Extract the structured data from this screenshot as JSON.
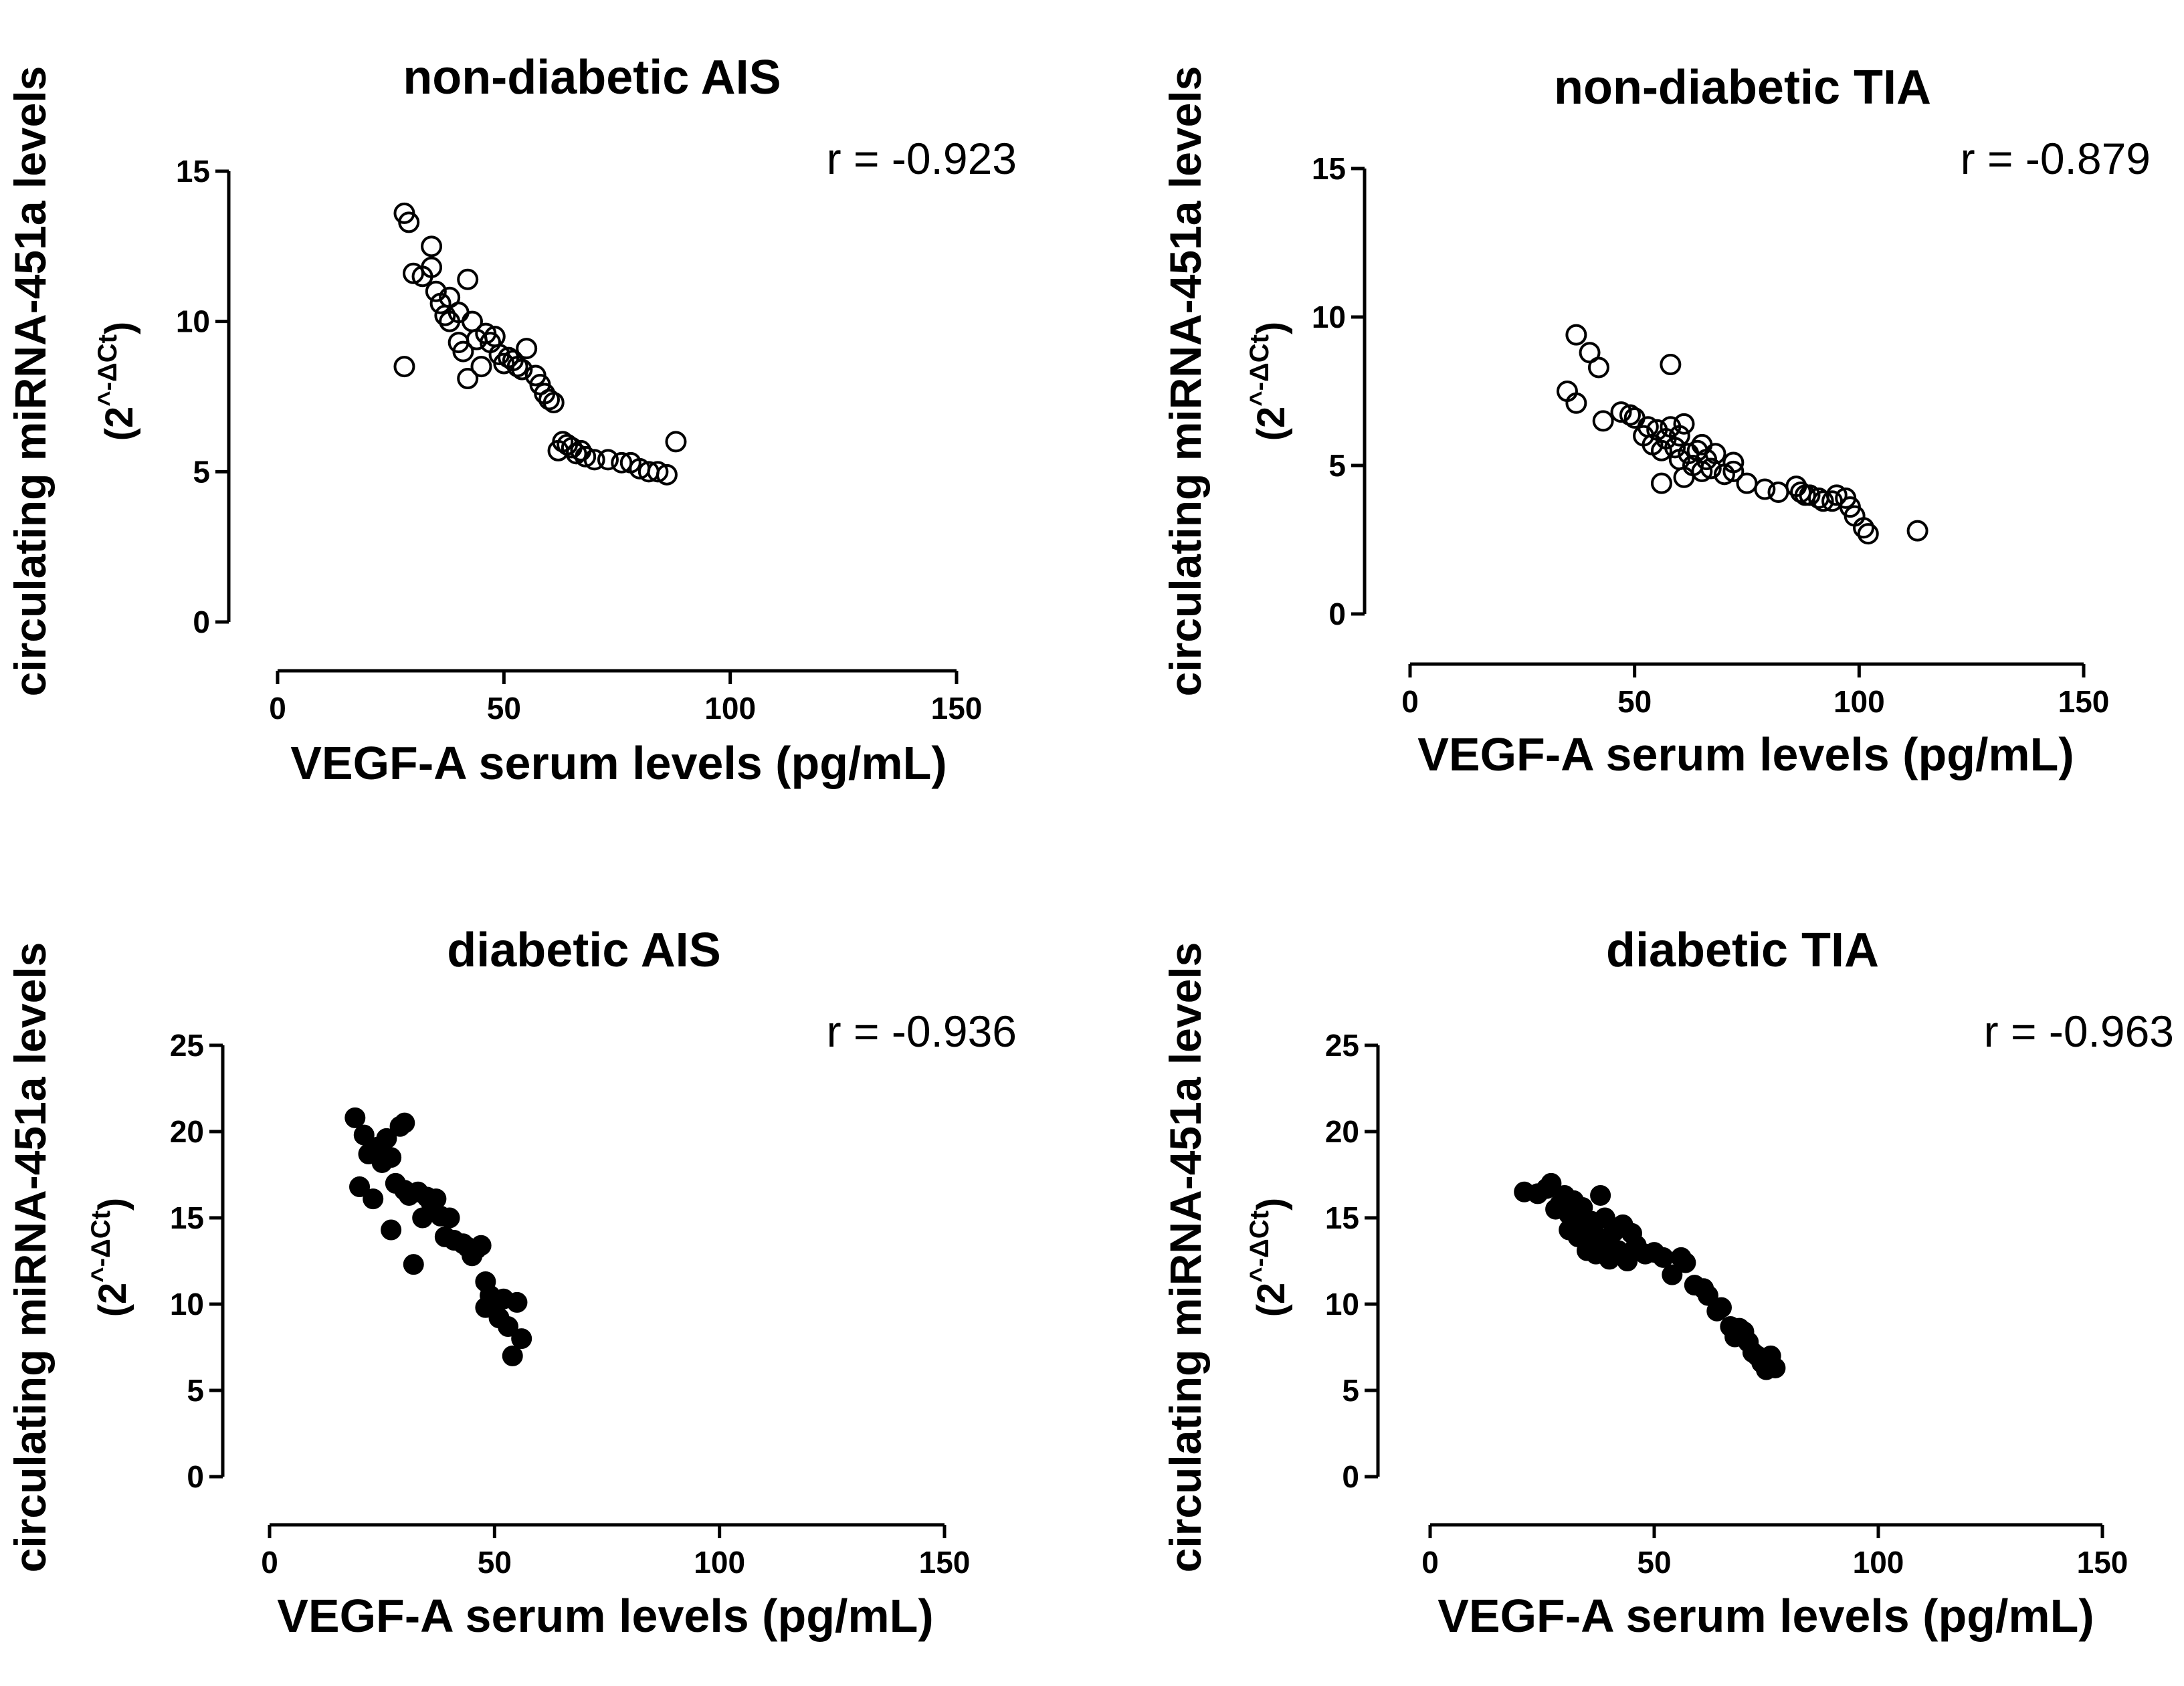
{
  "chart_data": [
    {
      "type": "scatter",
      "title": "non-diabetic AIS",
      "xlabel": "VEGF-A serum levels (pg/mL)",
      "ylabel": "circulating miRNA-451a levels",
      "ylabel_unit": {
        "open": "(2",
        "sup": "^-ΔCt",
        "close": ")"
      },
      "annotation": "r = -0.923",
      "xlim": [
        0,
        150
      ],
      "ylim": [
        0,
        15
      ],
      "xticks": [
        0,
        50,
        100,
        150
      ],
      "yticks": [
        0,
        5,
        10,
        15
      ],
      "marker": "open",
      "points": [
        [
          28,
          13.6
        ],
        [
          29,
          13.3
        ],
        [
          30,
          11.6
        ],
        [
          32,
          11.5
        ],
        [
          34,
          12.5
        ],
        [
          34,
          11.8
        ],
        [
          35,
          11.0
        ],
        [
          36,
          10.6
        ],
        [
          37,
          10.2
        ],
        [
          38,
          10.8
        ],
        [
          38,
          10.0
        ],
        [
          40,
          10.3
        ],
        [
          40,
          9.3
        ],
        [
          41,
          9.0
        ],
        [
          42,
          8.1
        ],
        [
          42,
          11.4
        ],
        [
          43,
          10.0
        ],
        [
          44,
          9.4
        ],
        [
          45,
          8.5
        ],
        [
          46,
          9.6
        ],
        [
          47,
          9.3
        ],
        [
          48,
          9.5
        ],
        [
          49,
          8.9
        ],
        [
          50,
          8.6
        ],
        [
          51,
          8.8
        ],
        [
          52,
          8.7
        ],
        [
          53,
          8.5
        ],
        [
          54,
          8.4
        ],
        [
          55,
          9.1
        ],
        [
          57,
          8.2
        ],
        [
          58,
          7.9
        ],
        [
          59,
          7.6
        ],
        [
          60,
          7.4
        ],
        [
          61,
          7.3
        ],
        [
          62,
          5.7
        ],
        [
          63,
          6.0
        ],
        [
          64,
          5.9
        ],
        [
          65,
          5.8
        ],
        [
          66,
          5.6
        ],
        [
          67,
          5.7
        ],
        [
          68,
          5.5
        ],
        [
          70,
          5.4
        ],
        [
          73,
          5.4
        ],
        [
          76,
          5.3
        ],
        [
          78,
          5.3
        ],
        [
          80,
          5.1
        ],
        [
          82,
          5.0
        ],
        [
          84,
          5.0
        ],
        [
          86,
          4.9
        ],
        [
          88,
          6.0
        ],
        [
          28,
          8.5
        ]
      ]
    },
    {
      "type": "scatter",
      "title": "non-diabetic TIA",
      "xlabel": "VEGF-A serum levels (pg/mL)",
      "ylabel": "circulating miRNA-451a levels",
      "ylabel_unit": {
        "open": "(2",
        "sup": "^-ΔCt",
        "close": ")"
      },
      "annotation": "r = -0.879",
      "xlim": [
        0,
        150
      ],
      "ylim": [
        0,
        15
      ],
      "xticks": [
        0,
        50,
        100,
        150
      ],
      "yticks": [
        0,
        5,
        10,
        15
      ],
      "marker": "open",
      "points": [
        [
          35,
          7.5
        ],
        [
          37,
          7.1
        ],
        [
          37,
          9.4
        ],
        [
          40,
          8.8
        ],
        [
          42,
          8.3
        ],
        [
          43,
          6.5
        ],
        [
          47,
          6.8
        ],
        [
          49,
          6.7
        ],
        [
          50,
          6.6
        ],
        [
          52,
          6.0
        ],
        [
          53,
          6.3
        ],
        [
          54,
          5.7
        ],
        [
          55,
          6.2
        ],
        [
          56,
          5.5
        ],
        [
          56,
          4.4
        ],
        [
          57,
          5.9
        ],
        [
          58,
          6.3
        ],
        [
          58,
          8.4
        ],
        [
          59,
          5.6
        ],
        [
          60,
          6.0
        ],
        [
          60,
          5.2
        ],
        [
          61,
          6.4
        ],
        [
          61,
          4.6
        ],
        [
          62,
          5.4
        ],
        [
          63,
          5.0
        ],
        [
          64,
          5.5
        ],
        [
          65,
          5.7
        ],
        [
          65,
          4.8
        ],
        [
          66,
          5.2
        ],
        [
          67,
          4.9
        ],
        [
          68,
          5.4
        ],
        [
          70,
          4.7
        ],
        [
          72,
          4.8
        ],
        [
          72,
          5.1
        ],
        [
          75,
          4.4
        ],
        [
          79,
          4.2
        ],
        [
          82,
          4.1
        ],
        [
          86,
          4.3
        ],
        [
          87,
          4.1
        ],
        [
          88,
          4.0
        ],
        [
          89,
          4.0
        ],
        [
          91,
          3.9
        ],
        [
          92,
          3.8
        ],
        [
          94,
          3.8
        ],
        [
          95,
          4.0
        ],
        [
          97,
          3.9
        ],
        [
          98,
          3.6
        ],
        [
          99,
          3.3
        ],
        [
          101,
          2.9
        ],
        [
          102,
          2.7
        ],
        [
          113,
          2.8
        ]
      ]
    },
    {
      "type": "scatter",
      "title": "diabetic AIS",
      "xlabel": "VEGF-A serum levels (pg/mL)",
      "ylabel": "circulating miRNA-451a levels",
      "ylabel_unit": {
        "open": "(2",
        "sup": "^-ΔCt",
        "close": ")"
      },
      "annotation": "r = -0.936",
      "xlim": [
        0,
        150
      ],
      "ylim": [
        0,
        25
      ],
      "xticks": [
        0,
        50,
        100,
        150
      ],
      "yticks": [
        0,
        5,
        10,
        15,
        20,
        25
      ],
      "marker": "filled",
      "points": [
        [
          19,
          20.8
        ],
        [
          20,
          16.8
        ],
        [
          21,
          19.8
        ],
        [
          22,
          18.7
        ],
        [
          23,
          16.1
        ],
        [
          24,
          19.1
        ],
        [
          25,
          18.2
        ],
        [
          26,
          19.6
        ],
        [
          27,
          14.3
        ],
        [
          27,
          18.5
        ],
        [
          28,
          17.0
        ],
        [
          29,
          20.3
        ],
        [
          30,
          20.5
        ],
        [
          30,
          16.6
        ],
        [
          31,
          16.3
        ],
        [
          32,
          12.3
        ],
        [
          33,
          16.5
        ],
        [
          34,
          15.0
        ],
        [
          35,
          16.2
        ],
        [
          36,
          15.8
        ],
        [
          37,
          16.1
        ],
        [
          38,
          15.1
        ],
        [
          39,
          13.9
        ],
        [
          40,
          15.0
        ],
        [
          41,
          13.7
        ],
        [
          43,
          13.5
        ],
        [
          44,
          13.3
        ],
        [
          45,
          12.8
        ],
        [
          46,
          13.2
        ],
        [
          47,
          13.4
        ],
        [
          48,
          9.8
        ],
        [
          48,
          11.3
        ],
        [
          49,
          10.5
        ],
        [
          50,
          9.8
        ],
        [
          51,
          9.2
        ],
        [
          52,
          10.3
        ],
        [
          53,
          8.7
        ],
        [
          54,
          7.0
        ],
        [
          55,
          10.1
        ],
        [
          56,
          8.0
        ]
      ]
    },
    {
      "type": "scatter",
      "title": "diabetic TIA",
      "xlabel": "VEGF-A serum levels (pg/mL)",
      "ylabel": "circulating miRNA-451a levels",
      "ylabel_unit": {
        "open": "(2",
        "sup": "^-ΔCt",
        "close": ")"
      },
      "annotation": "r = -0.963",
      "xlim": [
        0,
        150
      ],
      "ylim": [
        0,
        25
      ],
      "xticks": [
        0,
        50,
        100,
        150
      ],
      "yticks": [
        0,
        5,
        10,
        15,
        20,
        25
      ],
      "marker": "filled",
      "points": [
        [
          21,
          16.5
        ],
        [
          24,
          16.4
        ],
        [
          26,
          16.7
        ],
        [
          27,
          17.0
        ],
        [
          28,
          15.5
        ],
        [
          29,
          15.8
        ],
        [
          30,
          16.3
        ],
        [
          31,
          14.3
        ],
        [
          31,
          15.2
        ],
        [
          32,
          16.0
        ],
        [
          33,
          15.0
        ],
        [
          33,
          13.9
        ],
        [
          34,
          15.6
        ],
        [
          35,
          14.6
        ],
        [
          35,
          13.1
        ],
        [
          36,
          14.8
        ],
        [
          37,
          14.0
        ],
        [
          37,
          12.9
        ],
        [
          38,
          16.3
        ],
        [
          39,
          15.0
        ],
        [
          40,
          13.6
        ],
        [
          40,
          12.6
        ],
        [
          41,
          14.2
        ],
        [
          42,
          13.1
        ],
        [
          43,
          14.6
        ],
        [
          44,
          12.5
        ],
        [
          45,
          14.1
        ],
        [
          46,
          13.4
        ],
        [
          48,
          12.9
        ],
        [
          50,
          13.0
        ],
        [
          52,
          12.7
        ],
        [
          54,
          11.7
        ],
        [
          56,
          12.7
        ],
        [
          57,
          12.4
        ],
        [
          59,
          11.1
        ],
        [
          61,
          10.9
        ],
        [
          62,
          10.5
        ],
        [
          64,
          9.6
        ],
        [
          65,
          9.8
        ],
        [
          67,
          8.7
        ],
        [
          68,
          8.1
        ],
        [
          69,
          8.6
        ],
        [
          70,
          8.4
        ],
        [
          71,
          7.8
        ],
        [
          72,
          7.2
        ],
        [
          73,
          7.0
        ],
        [
          74,
          6.6
        ],
        [
          75,
          6.2
        ],
        [
          76,
          7.0
        ],
        [
          77,
          6.3
        ]
      ]
    }
  ]
}
